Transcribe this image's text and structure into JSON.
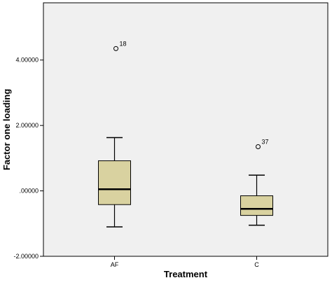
{
  "chart_data": {
    "type": "boxplot",
    "xlabel": "Treatment",
    "ylabel": "Factor one loading",
    "ylim": [
      -2.0,
      5.75
    ],
    "yticks": [
      -2.0,
      0.0,
      2.0,
      4.0
    ],
    "ytick_labels": [
      "-2.00000",
      ".00000",
      "2.00000",
      "4.00000"
    ],
    "categories": [
      "AF",
      "C"
    ],
    "boxes": [
      {
        "category": "AF",
        "whisker_low": -1.1,
        "q1": -0.42,
        "median": 0.05,
        "q3": 0.92,
        "whisker_high": 1.63,
        "outliers": [
          {
            "value": 4.35,
            "label": "18"
          }
        ]
      },
      {
        "category": "C",
        "whisker_low": -1.05,
        "q1": -0.75,
        "median": -0.55,
        "q3": -0.15,
        "whisker_high": 0.48,
        "outliers": [
          {
            "value": 1.35,
            "label": "37"
          }
        ]
      }
    ],
    "grid": false,
    "legend": "none",
    "colors": {
      "box_fill": "#d9d2a0",
      "plot_background": "#f0f0f0",
      "line": "#000000"
    }
  }
}
